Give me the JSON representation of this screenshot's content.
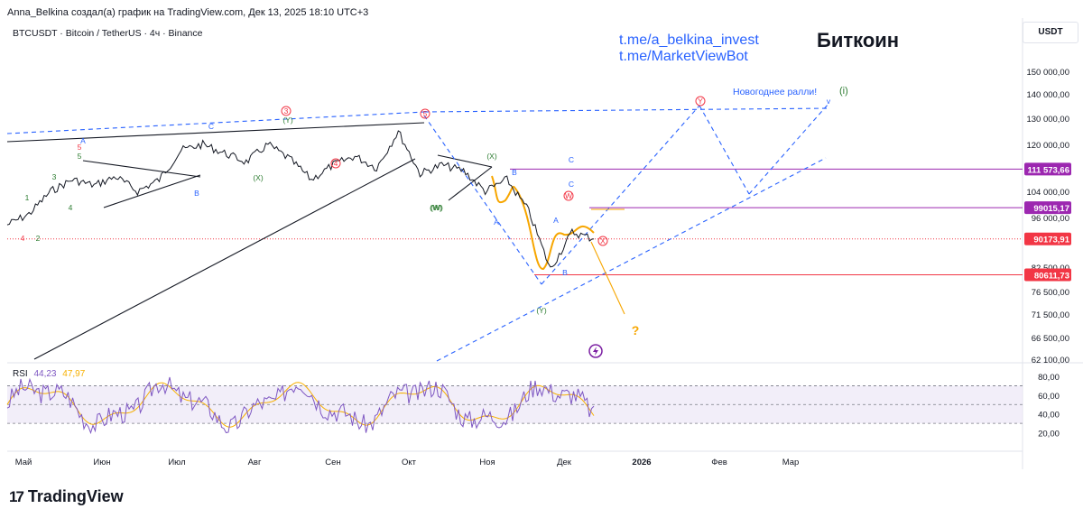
{
  "header": {
    "author_line": "Anna_Belkina создал(а) график на TradingView.com, Дек 13, 2025 18:10 UTC+3",
    "symbol_line": "BTCUSDT · Bitcoin / TetherUS · 4ч · Binance",
    "currency": "USDT"
  },
  "overlay": {
    "link1": "t.me/a_belkina_invest",
    "link2": "t.me/MarketViewBot",
    "title": "Биткоин",
    "rally_label": "Новогоднее ралли!",
    "rally_wave": "(i)",
    "question": "?"
  },
  "rsi": {
    "name": "RSI",
    "value": "44,23",
    "ma": "47,97"
  },
  "brand": {
    "name": "TradingView"
  },
  "colors": {
    "up": "#131722",
    "purple": "#9c27b0",
    "red": "#f23645",
    "blue": "#2962ff",
    "orange": "#f7a600",
    "green": "#4caf50",
    "rsi": "#7e57c2",
    "rsi_ma": "#f7b000"
  },
  "chart_data": {
    "type": "line",
    "title": "BTCUSDT · Bitcoin / TetherUS · 4ч · Binance",
    "price_ticks": [
      {
        "label": "150 000,00",
        "value": 150000
      },
      {
        "label": "140 000,00",
        "value": 140000
      },
      {
        "label": "130 000,00",
        "value": 130000
      },
      {
        "label": "120 000,00",
        "value": 120000
      },
      {
        "label": "111 573,66",
        "value": 111573.66,
        "badge": "purple"
      },
      {
        "label": "104 000,00",
        "value": 104000
      },
      {
        "label": "99015,17",
        "value": 99015.17,
        "badge": "purple"
      },
      {
        "label": "96 000,00",
        "value": 96000
      },
      {
        "label": "90173,91",
        "value": 90173.91,
        "badge": "red"
      },
      {
        "label": "82 500,00",
        "value": 82500
      },
      {
        "label": "80611,73",
        "value": 80611.73,
        "badge": "red"
      },
      {
        "label": "76 500,00",
        "value": 76500
      },
      {
        "label": "71 500,00",
        "value": 71500
      },
      {
        "label": "66 500,00",
        "value": 66500
      },
      {
        "label": "62 100,00",
        "value": 62100
      }
    ],
    "rsi_ticks": [
      "80,00",
      "60,00",
      "40,00",
      "20,00"
    ],
    "rsi_levels": [
      70,
      50,
      30
    ],
    "time_labels": [
      "Май",
      "Июн",
      "Июл",
      "Авг",
      "Сен",
      "Окт",
      "Ноя",
      "Дек",
      "2026",
      "Фев",
      "Мар"
    ],
    "price_series": {
      "dates": [
        "Май",
        "Май",
        "Май",
        "Май",
        "Июн",
        "Июн",
        "Июн",
        "Июл",
        "Июл",
        "Июл",
        "Июл",
        "Авг",
        "Авг",
        "Авг",
        "Сен",
        "Сен",
        "Сен",
        "Окт",
        "Окт",
        "Окт",
        "Окт",
        "Ноя",
        "Ноя",
        "Ноя",
        "Ноя",
        "Дек",
        "Дек",
        "Дек"
      ],
      "values": [
        94000,
        97000,
        104000,
        108000,
        106000,
        109000,
        104000,
        108000,
        118000,
        120000,
        117000,
        114000,
        120000,
        115000,
        108000,
        113000,
        116000,
        112000,
        125000,
        110000,
        113000,
        111000,
        104000,
        108000,
        98000,
        82000,
        92000,
        90174
      ]
    },
    "levels": [
      {
        "value": 111573.66,
        "style": "purple"
      },
      {
        "value": 99015.17,
        "style": "purple"
      },
      {
        "value": 90173.91,
        "style": "red-dotted"
      },
      {
        "value": 80611.73,
        "style": "red"
      }
    ],
    "wave_labels": [
      {
        "text": "1",
        "color": "green"
      },
      {
        "text": "2",
        "color": "green"
      },
      {
        "text": "3",
        "color": "green"
      },
      {
        "text": "4",
        "color": "red"
      },
      {
        "text": "4",
        "color": "green"
      },
      {
        "text": "5",
        "color": "green"
      },
      {
        "text": "5",
        "color": "red"
      },
      {
        "text": "A",
        "color": "blue"
      },
      {
        "text": "B",
        "color": "blue"
      },
      {
        "text": "(W)",
        "color": "green"
      },
      {
        "text": "C",
        "color": "blue"
      },
      {
        "text": "(X)",
        "color": "green"
      },
      {
        "text": "(Y)",
        "color": "green"
      },
      {
        "text": "3",
        "color": "red"
      },
      {
        "text": "4",
        "color": "red"
      },
      {
        "text": "5",
        "color": "red"
      },
      {
        "text": "(W)",
        "color": "green"
      },
      {
        "text": "(X)",
        "color": "green"
      },
      {
        "text": "B",
        "color": "blue"
      },
      {
        "text": "A",
        "color": "blue"
      },
      {
        "text": "C",
        "color": "blue"
      },
      {
        "text": "(Y)",
        "color": "green"
      },
      {
        "text": "W",
        "color": "red"
      },
      {
        "text": "A",
        "color": "blue"
      },
      {
        "text": "C",
        "color": "blue"
      },
      {
        "text": "B",
        "color": "blue"
      },
      {
        "text": "X",
        "color": "red"
      },
      {
        "text": "Y",
        "color": "red"
      },
      {
        "text": "v",
        "color": "blue"
      }
    ],
    "rsi_series": {
      "last": 44.23,
      "ma": 47.97
    }
  }
}
